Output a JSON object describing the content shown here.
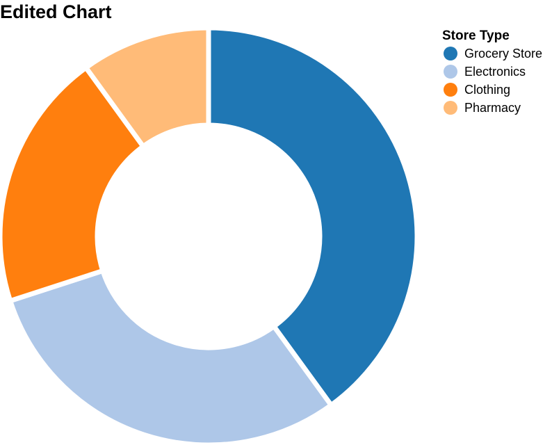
{
  "chart_data": {
    "type": "pie",
    "title": "Edited Chart",
    "legend_title": "Store Type",
    "legend_position": "top-right",
    "categories": [
      "Grocery Store",
      "Electronics",
      "Clothing",
      "Pharmacy"
    ],
    "values": [
      40,
      30,
      20,
      10
    ],
    "colors": [
      "#1f77b4",
      "#aec7e8",
      "#ff7f0e",
      "#ffbb78"
    ],
    "donut": true
  }
}
